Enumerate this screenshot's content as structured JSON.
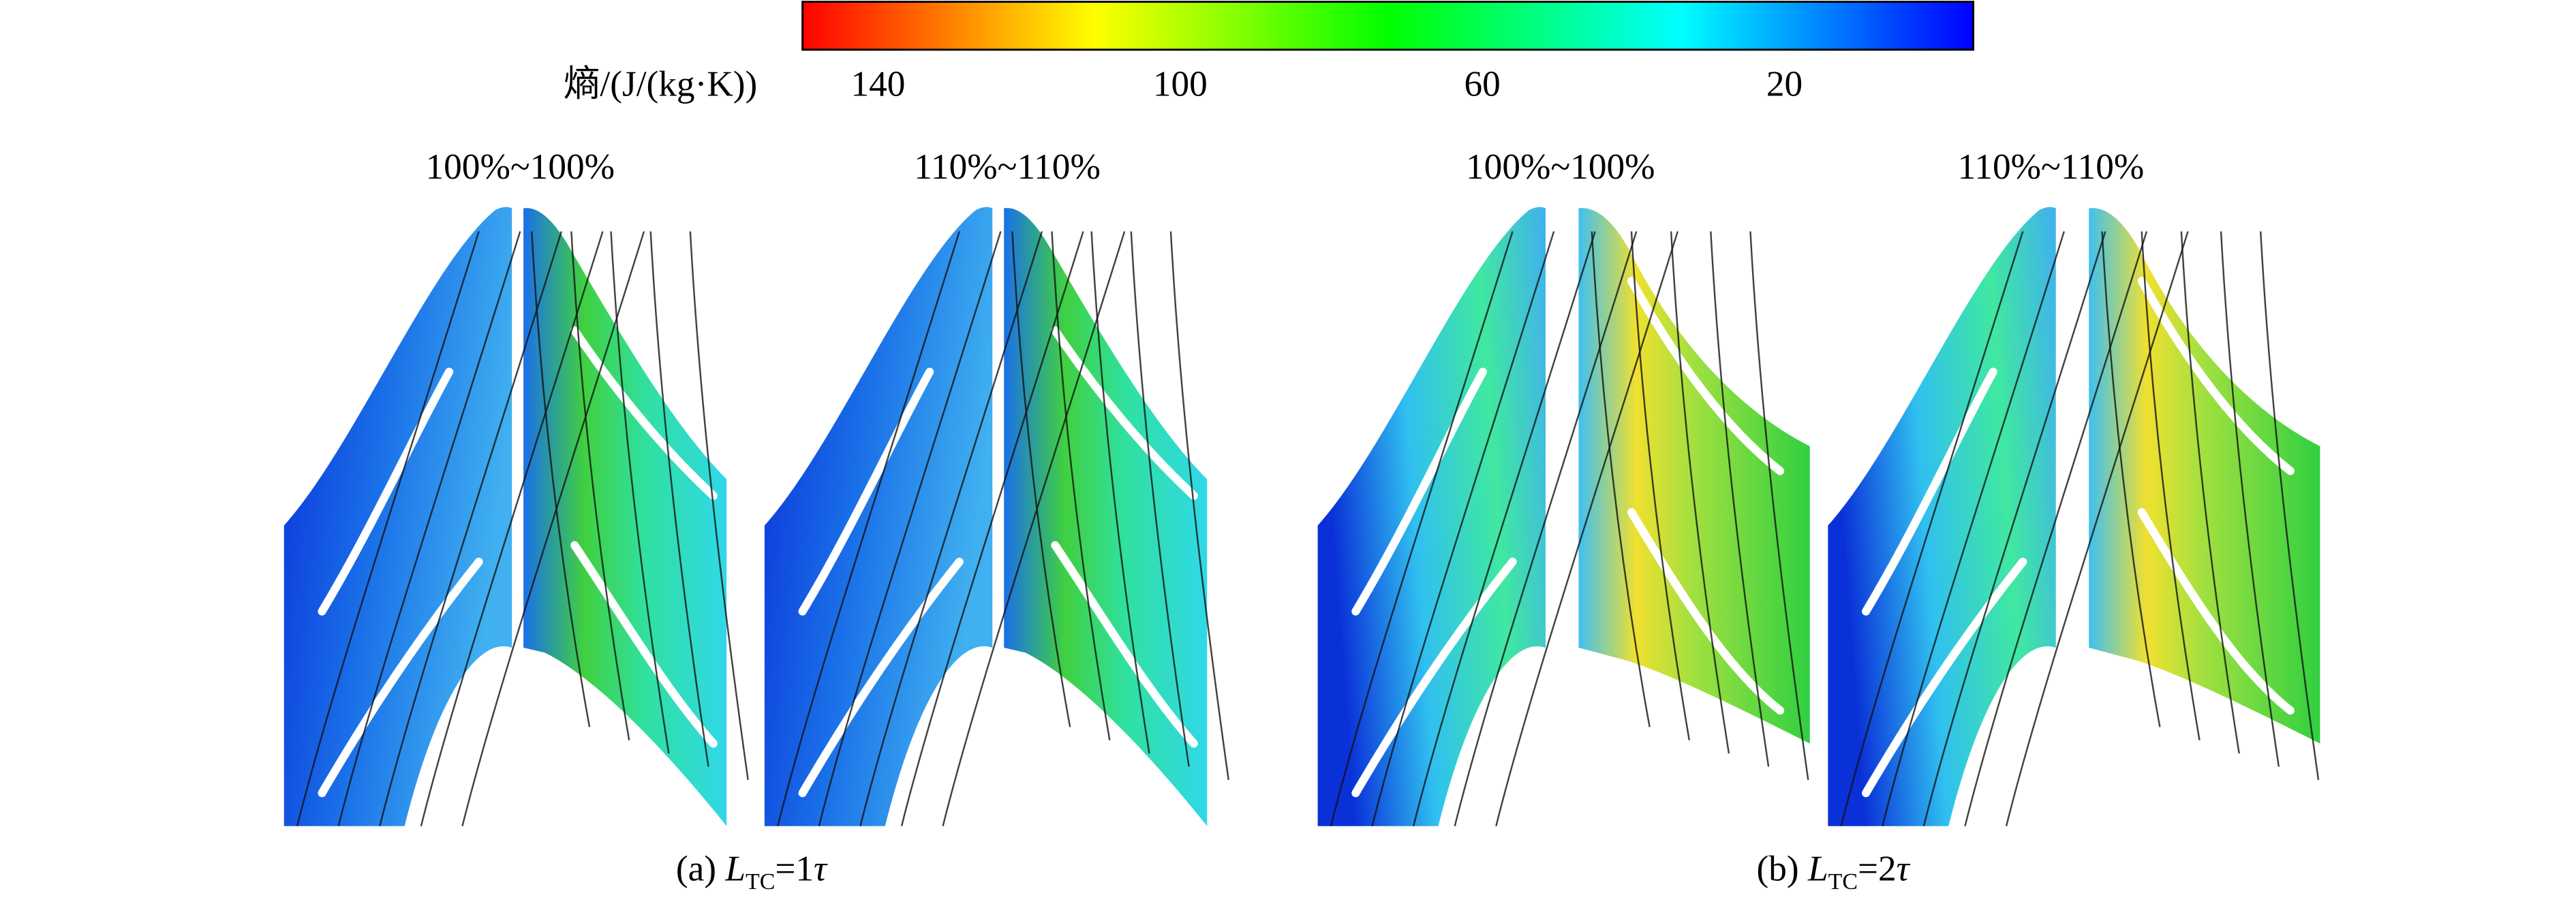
{
  "colorbar": {
    "label": "熵/(J/(kg·K))",
    "ticks": [
      140,
      100,
      60,
      20
    ],
    "range": [
      150,
      -5
    ],
    "colors": [
      "#ff0000",
      "#ffff00",
      "#00ff00",
      "#00ffff",
      "#0000ff"
    ]
  },
  "panels": [
    {
      "title": "100%~100%"
    },
    {
      "title": "110%~110%"
    },
    {
      "title": "100%~100%"
    },
    {
      "title": "110%~110%"
    }
  ],
  "captions": [
    {
      "prefix": "(a) ",
      "variable": "L",
      "subscript": "TC",
      "equals": "=1",
      "unit": "τ"
    },
    {
      "prefix": "(b) ",
      "variable": "L",
      "subscript": "TC",
      "equals": "=2",
      "unit": "τ"
    }
  ]
}
